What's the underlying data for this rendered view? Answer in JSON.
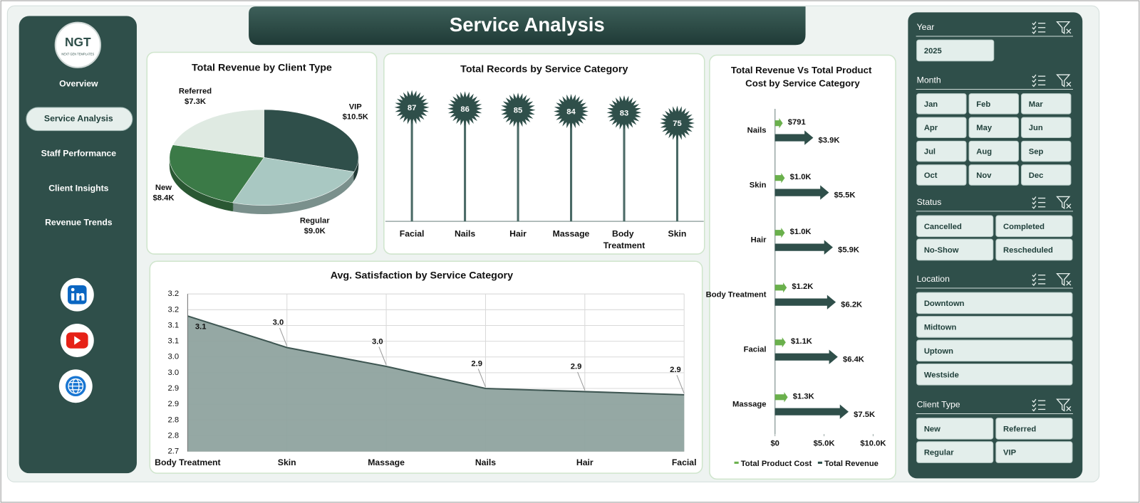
{
  "header": {
    "title": "Service Analysis"
  },
  "logo": {
    "text": "NGT",
    "tagline": "NEXT GEN TEMPLATES"
  },
  "nav": {
    "items": [
      "Overview",
      "Service Analysis",
      "Staff Performance",
      "Client Insights",
      "Revenue Trends"
    ],
    "active": 1
  },
  "chart_data": [
    {
      "type": "pie",
      "title": "Total Revenue by Client Type",
      "categories": [
        "VIP",
        "Regular",
        "New",
        "Referred"
      ],
      "values": [
        10500,
        9000,
        8400,
        7300
      ],
      "value_labels": [
        "$10.5K",
        "$9.0K",
        "$8.4K",
        "$7.3K"
      ],
      "colors": [
        "#2f4f4a",
        "#a9c8c2",
        "#3b7a47",
        "#dfeae2"
      ]
    },
    {
      "type": "lollipop",
      "title": "Total Records by Service Category",
      "categories": [
        "Facial",
        "Nails",
        "Hair",
        "Massage",
        "Body Treatment",
        "Skin"
      ],
      "values": [
        87,
        86,
        85,
        84,
        83,
        75
      ],
      "color": "#2f4f4a",
      "ylim": [
        0,
        95
      ]
    },
    {
      "type": "bar",
      "orientation": "horizontal",
      "title": "Total Revenue Vs Total Product Cost by Service Category",
      "categories": [
        "Nails",
        "Skin",
        "Hair",
        "Body Treatment",
        "Facial",
        "Massage"
      ],
      "series": [
        {
          "name": "Total Product Cost",
          "color": "#6ab04c",
          "values": [
            791,
            1000,
            1000,
            1200,
            1100,
            1300
          ],
          "value_labels": [
            "$791",
            "$1.0K",
            "$1.0K",
            "$1.2K",
            "$1.1K",
            "$1.3K"
          ]
        },
        {
          "name": "Total Revenue",
          "color": "#2f4f4a",
          "values": [
            3900,
            5500,
            5900,
            6200,
            6400,
            7500
          ],
          "value_labels": [
            "$3.9K",
            "$5.5K",
            "$5.9K",
            "$6.2K",
            "$6.4K",
            "$7.5K"
          ]
        }
      ],
      "xlim": [
        0,
        11000
      ],
      "xticks": [
        {
          "value": 0,
          "label": "$0"
        },
        {
          "value": 5000,
          "label": "$5.0K"
        },
        {
          "value": 10000,
          "label": "$10.0K"
        }
      ],
      "legend": "bottom",
      "grid": false
    },
    {
      "type": "area",
      "title": "Avg. Satisfaction by Service Category",
      "categories": [
        "Body Treatment",
        "Skin",
        "Massage",
        "Nails",
        "Hair",
        "Facial"
      ],
      "values": [
        3.13,
        3.03,
        2.97,
        2.9,
        2.89,
        2.88
      ],
      "value_labels": [
        "3.1",
        "3.0",
        "3.0",
        "2.9",
        "2.9",
        "2.9"
      ],
      "color": "#8fa39f",
      "line_color": "#3e5652",
      "ylim": [
        2.7,
        3.2
      ],
      "yticks": [
        3.2,
        {
          "value": 3.15,
          "label": "3.2"
        },
        3.1,
        {
          "value": 3.05,
          "label": "3.1"
        },
        {
          "value": 3,
          "label": "3.0"
        },
        {
          "value": 2.95,
          "label": "3.0"
        },
        2.9,
        {
          "value": 2.85,
          "label": "2.9"
        },
        2.8,
        {
          "value": 2.75,
          "label": "2.8"
        },
        2.7
      ],
      "grid": true
    }
  ],
  "slicers": [
    {
      "title": "Year",
      "options": [
        "2025"
      ]
    },
    {
      "title": "Month",
      "options": [
        "Jan",
        "Feb",
        "Mar",
        "Apr",
        "May",
        "Jun",
        "Jul",
        "Aug",
        "Sep",
        "Oct",
        "Nov",
        "Dec"
      ]
    },
    {
      "title": "Status",
      "options": [
        "Cancelled",
        "Completed",
        "No-Show",
        "Rescheduled"
      ]
    },
    {
      "title": "Location",
      "options": [
        "Downtown",
        "Midtown",
        "Uptown",
        "Westside"
      ]
    },
    {
      "title": "Client Type",
      "options": [
        "New",
        "Referred",
        "Regular",
        "VIP"
      ]
    }
  ]
}
